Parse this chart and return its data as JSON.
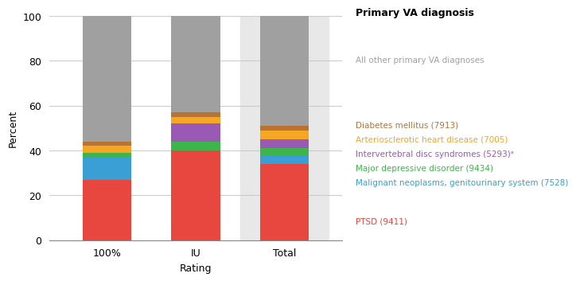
{
  "categories": [
    "100%",
    "IU",
    "Total"
  ],
  "series": [
    {
      "label": "PTSD (9411)",
      "color": "#e8473f",
      "values": [
        27,
        40,
        34
      ]
    },
    {
      "label": "Malignant neoplasms, genitourinary system (7528)",
      "color": "#3a9fd4",
      "values": [
        10,
        0,
        4
      ]
    },
    {
      "label": "Major depressive disorder (9434)",
      "color": "#3db54a",
      "values": [
        2,
        4,
        3
      ]
    },
    {
      "label": "Intervertebral disc syndromes (5293)ᵃ",
      "color": "#9b59b6",
      "values": [
        0,
        8,
        4
      ]
    },
    {
      "label": "Arteriosclerotic heart disease (7005)",
      "color": "#f5a623",
      "values": [
        3,
        3,
        4
      ]
    },
    {
      "label": "Diabetes mellitus (7913)",
      "color": "#b87333",
      "values": [
        2,
        2,
        2
      ]
    },
    {
      "label": "All other primary VA diagnoses",
      "color": "#a0a0a0",
      "values": [
        56,
        43,
        53
      ]
    }
  ],
  "ylabel": "Percent",
  "xlabel": "Rating",
  "ylim": [
    0,
    100
  ],
  "yticks": [
    0,
    20,
    40,
    60,
    80,
    100
  ],
  "legend_title": "Primary VA diagnosis",
  "total_bar_bg": "#e8e8e8",
  "bar_width": 0.55,
  "grid_color": "#cccccc",
  "legend_entries": [
    [
      "All other primary VA diagnoses",
      "#a0a0a0",
      0.77
    ],
    [
      "Diabetes mellitus (7913)",
      "#b87333",
      0.545
    ],
    [
      "Arteriosclerotic heart disease (7005)",
      "#f5a623",
      0.495
    ],
    [
      "Intervertebral disc syndromes (5293)ᵃ",
      "#9b59b6",
      0.445
    ],
    [
      "Major depressive disorder (9434)",
      "#3db54a",
      0.395
    ],
    [
      "Malignant neoplasms, genitourinary system (7528)",
      "#3a9fd4",
      0.345
    ],
    [
      "PTSD (9411)",
      "#e8473f",
      0.21
    ]
  ]
}
